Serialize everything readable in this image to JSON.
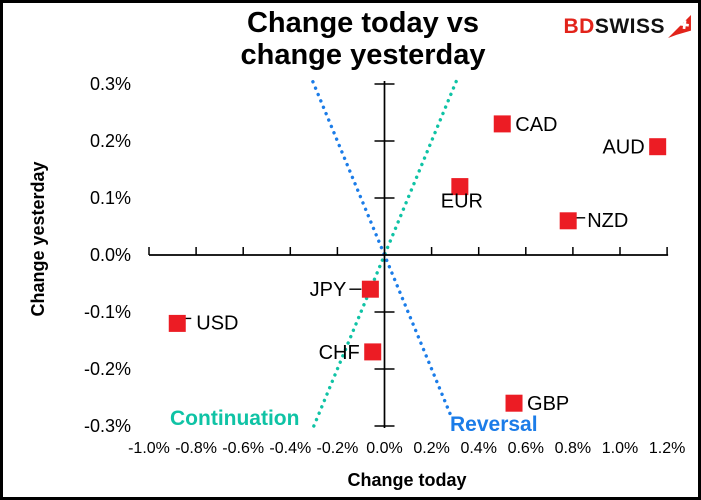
{
  "logo": {
    "bd": "BD",
    "swiss": "SWISS",
    "arrow_icon": "red-pennant-with-white-cross",
    "arrow_color": "#E2231A"
  },
  "chart_data": {
    "type": "scatter",
    "title": "Change today vs change yesterday",
    "title_lines": [
      "Change today vs",
      "change yesterday"
    ],
    "xlabel": "Change today",
    "ylabel": "Change yesterday",
    "xlim": [
      -1.0,
      1.2
    ],
    "ylim": [
      -0.3,
      0.3
    ],
    "grid": false,
    "x_tick_values": [
      -1.0,
      -0.8,
      -0.6,
      -0.4,
      -0.2,
      0.0,
      0.2,
      0.4,
      0.6,
      0.8,
      1.0,
      1.2
    ],
    "x_tick_labels": [
      "-1.0%",
      "-0.8%",
      "-0.6%",
      "-0.4%",
      "-0.2%",
      "0.0%",
      "0.2%",
      "0.4%",
      "0.6%",
      "0.8%",
      "1.0%",
      "1.2%"
    ],
    "y_tick_values": [
      0.3,
      0.2,
      0.1,
      0.0,
      -0.1,
      -0.2,
      -0.3
    ],
    "y_tick_labels": [
      "0.3%",
      "0.2%",
      "0.1%",
      "0.0%",
      "-0.1%",
      "-0.2%",
      "-0.3%"
    ],
    "marker_color": "#EC1C24",
    "points": [
      {
        "label": "USD",
        "x": -0.88,
        "y": -0.12,
        "side": "right-leader",
        "leader": [
          [
            14,
            -5
          ],
          [
            5,
            -5
          ],
          [
            -2,
            1
          ]
        ]
      },
      {
        "label": "JPY",
        "x": -0.06,
        "y": -0.06,
        "side": "left-leader",
        "leader": [
          [
            -21,
            0
          ],
          [
            -9,
            0
          ]
        ]
      },
      {
        "label": "CHF",
        "x": -0.05,
        "y": -0.17,
        "side": "left"
      },
      {
        "label": "EUR",
        "x": 0.32,
        "y": 0.12,
        "side": "below"
      },
      {
        "label": "CAD",
        "x": 0.5,
        "y": 0.23,
        "side": "right"
      },
      {
        "label": "GBP",
        "x": 0.55,
        "y": -0.26,
        "side": "right"
      },
      {
        "label": "NZD",
        "x": 0.78,
        "y": 0.06,
        "side": "right-leader",
        "leader": [
          [
            17,
            -3
          ],
          [
            8,
            -3
          ]
        ]
      },
      {
        "label": "AUD",
        "x": 1.16,
        "y": 0.19,
        "side": "left"
      }
    ],
    "lines": [
      {
        "name": "Continuation",
        "from": [
          -0.3,
          -0.3
        ],
        "to": [
          0.307,
          0.307
        ],
        "color": "#0FC3A5",
        "style": "dotted"
      },
      {
        "name": "Reversal",
        "from": [
          -0.304,
          0.304
        ],
        "to": [
          0.285,
          -0.285
        ],
        "color": "#1B7CE8",
        "style": "dotted"
      }
    ],
    "annotations": [
      {
        "text": "Continuation",
        "color": "#0FC3A5",
        "position": "lower-left-of-origin"
      },
      {
        "text": "Reversal",
        "color": "#1B7CE8",
        "position": "lower-right-of-origin"
      }
    ]
  }
}
